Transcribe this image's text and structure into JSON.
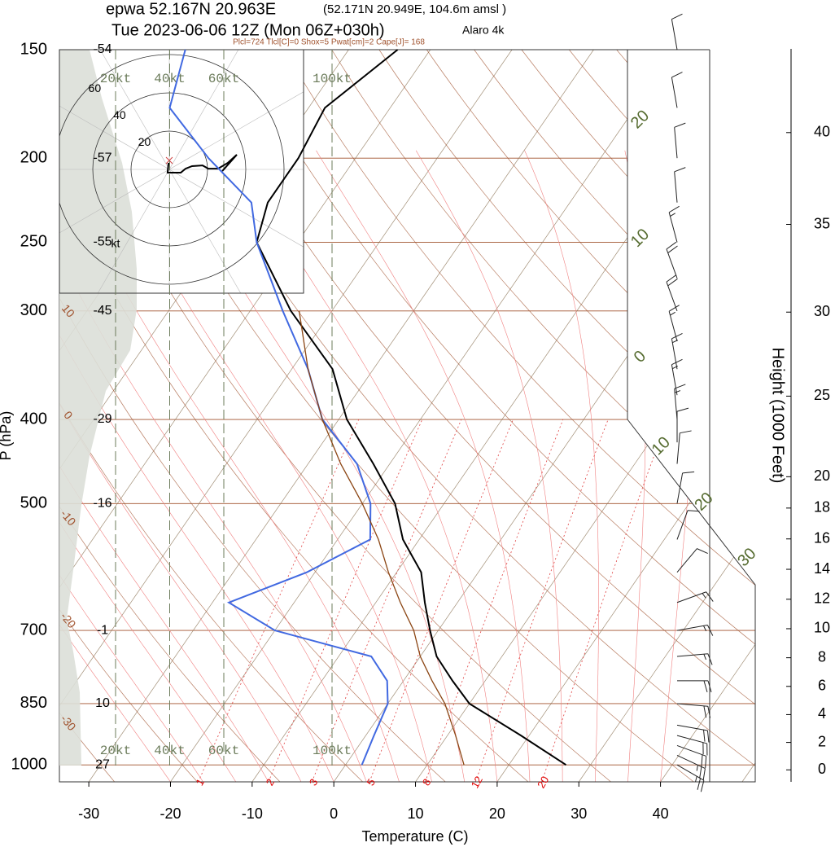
{
  "chart_data": {
    "type": "skewt",
    "title": "epwa 52.167N 20.963E",
    "location_note": "(52.171N 20.949E, 104.6m amsl )",
    "subtitle": "Tue 2023-06-06 12Z (Mon 06Z+030h)",
    "model": "Alaro 4k",
    "indices": "Plcl=724 Tlcl[C]=0 Shox=5 Pwat[cm]=2 Cape[J]= 168",
    "xlabel": "Temperature (C)",
    "ylabel": "P (hPa)",
    "xlim": [
      -33.6,
      51.6
    ],
    "xticks": [
      -30,
      -20,
      -10,
      0,
      10,
      20,
      30,
      40
    ],
    "ylim": [
      1046,
      150
    ],
    "yticks": [
      1000,
      850,
      700,
      500,
      400,
      300,
      250,
      200,
      150
    ],
    "log_y": true,
    "pressure": [
      1000,
      925,
      850,
      800,
      750,
      700,
      650,
      600,
      550,
      500,
      450,
      400,
      350,
      300,
      250,
      225,
      200,
      175,
      150
    ],
    "series": [
      {
        "color": "#000000",
        "values": [
          27,
          19,
          10,
          6,
          2,
          -1,
          -4,
          -7,
          -12,
          -16,
          -22,
          -29,
          -35,
          -45,
          -55,
          -57,
          -57,
          -58,
          -54
        ]
      },
      {
        "color": "#4169e1",
        "values": [
          2,
          1,
          0,
          -2,
          -6,
          -20,
          -28,
          -21,
          -16,
          -19,
          -24,
          -32,
          -38,
          -46,
          -55,
          -59,
          -68,
          -77,
          -80
        ]
      },
      {
        "color": "#8b4513",
        "values": [
          14.5,
          11,
          7,
          3.5,
          0,
          -3,
          -7,
          -11,
          -15,
          -20,
          -26,
          -32,
          -38,
          -44,
          null,
          null,
          null,
          null,
          null
        ]
      }
    ],
    "dry_adiabat_labels": [
      10,
      0,
      -10,
      -20,
      -30
    ],
    "isotherm_labels": [
      {
        "value": -20,
        "label": "20"
      },
      {
        "value": -10,
        "label": "10"
      },
      0,
      10,
      20,
      30
    ],
    "mixing_ratio_labels": [
      1,
      2,
      3,
      5,
      8,
      12,
      20
    ],
    "wind_scale": [
      {
        "value": 20,
        "label": "20kt"
      },
      {
        "value": 40,
        "label": "40kt"
      },
      {
        "value": 60,
        "label": "60kt"
      },
      {
        "value": 100,
        "label": "100kt"
      }
    ],
    "hodograph_rings": [
      20,
      40,
      60
    ],
    "hodograph_unit": "kt",
    "hodograph": {
      "u": [
        -0.4,
        -0.9,
        6,
        8.5,
        11.9,
        17.4,
        20.4,
        25.5,
        30.6,
        35.3,
        27.7
      ],
      "v": [
        3.4,
        -1.7,
        -1.7,
        0.4,
        1.7,
        2.1,
        0.4,
        0.4,
        3.4,
        7.7,
        -0.9
      ]
    },
    "winds": {
      "pressure": [
        150,
        175,
        200,
        225,
        250,
        275,
        300,
        325,
        350,
        375,
        400,
        425,
        450,
        500,
        550,
        600,
        650,
        700,
        750,
        800,
        850,
        900,
        925,
        950,
        975,
        1000
      ],
      "direction": [
        350,
        350,
        355,
        355,
        345,
        340,
        340,
        345,
        350,
        350,
        355,
        0,
        5,
        10,
        20,
        40,
        70,
        80,
        85,
        90,
        95,
        100,
        105,
        110,
        115,
        120
      ],
      "speed": [
        10,
        10,
        10,
        10,
        15,
        20,
        20,
        15,
        15,
        15,
        15,
        10,
        10,
        10,
        10,
        10,
        15,
        15,
        15,
        20,
        20,
        20,
        20,
        20,
        25,
        25
      ]
    },
    "height_axis": {
      "label": "Height (1000 Feet)",
      "ticks": [
        0,
        2,
        4,
        6,
        8,
        10,
        12,
        14,
        16,
        18,
        20,
        25,
        30,
        35,
        40
      ]
    }
  }
}
